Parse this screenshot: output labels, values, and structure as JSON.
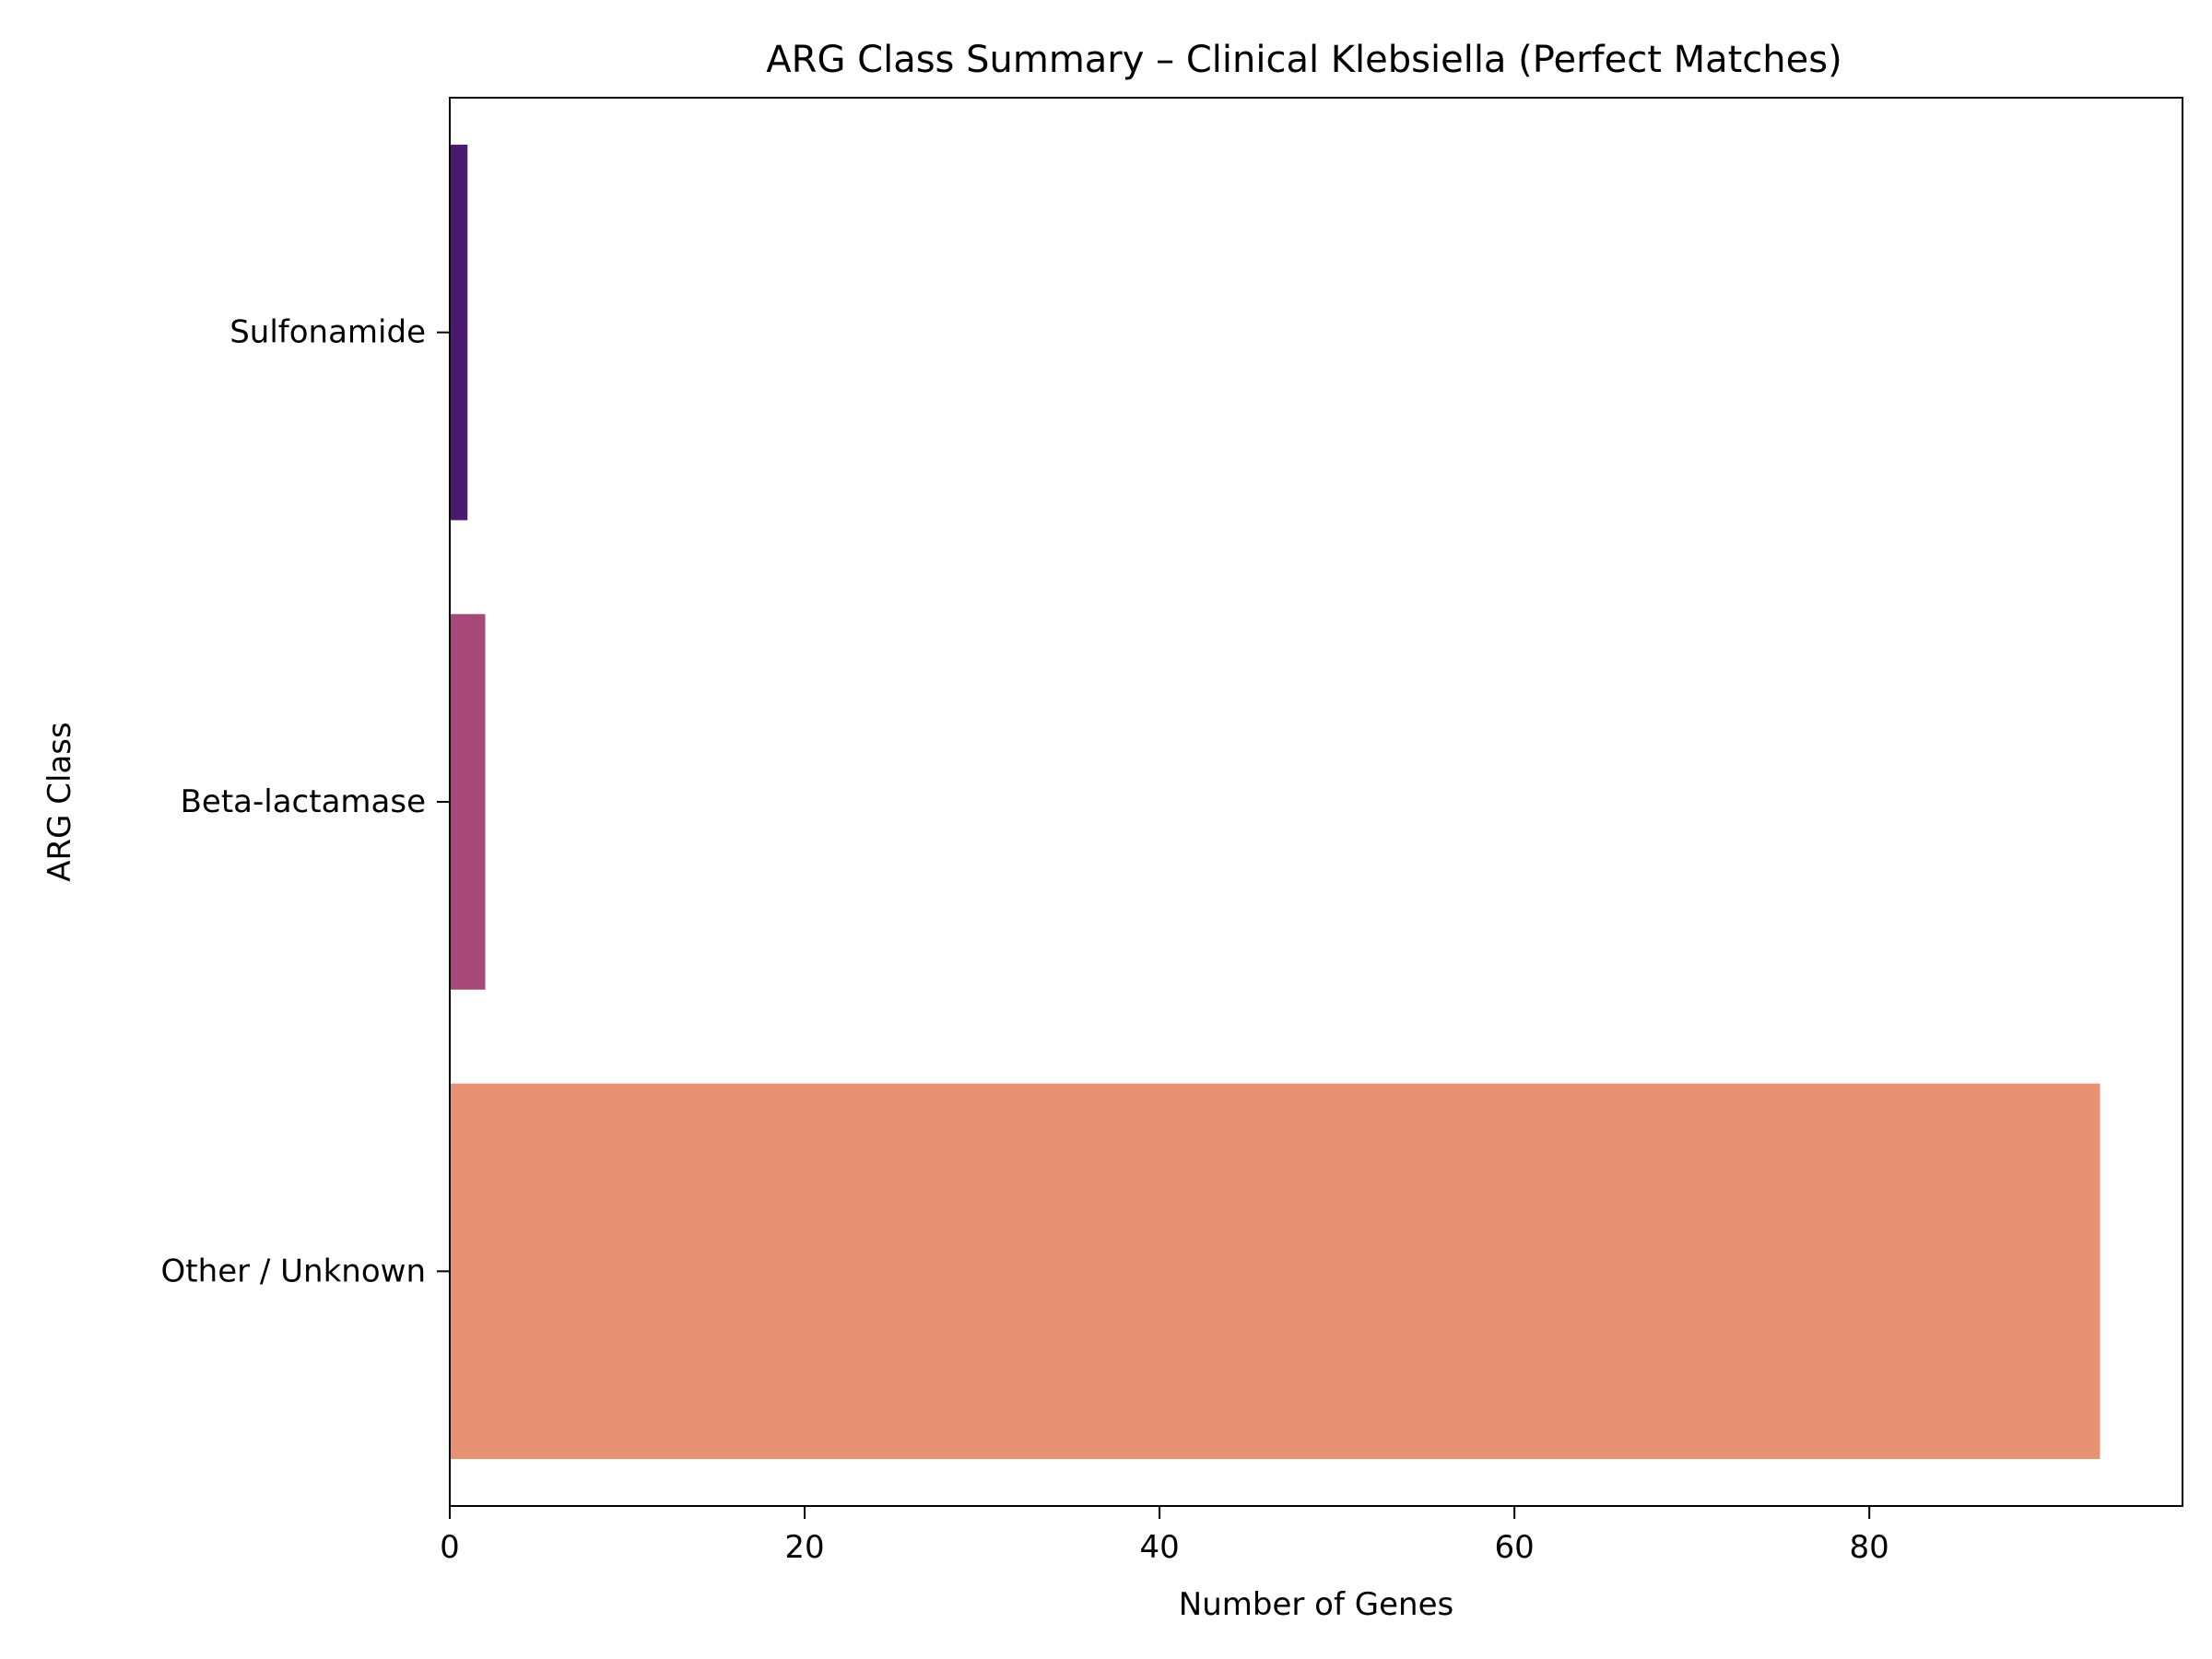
{
  "chart_data": {
    "type": "bar",
    "orientation": "horizontal",
    "title": "ARG Class Summary – Clinical Klebsiella (Perfect Matches)",
    "xlabel": "Number of Genes",
    "ylabel": "ARG Class",
    "categories": [
      "Sulfonamide",
      "Beta-lactamase",
      "Other / Unknown"
    ],
    "values": [
      1,
      2,
      93
    ],
    "colors": [
      "#4a1a6e",
      "#a64878",
      "#e89275"
    ],
    "xlim": [
      0,
      97.65
    ],
    "xticks": [
      0,
      20,
      40,
      60,
      80
    ],
    "grid": false,
    "legend": "none"
  }
}
